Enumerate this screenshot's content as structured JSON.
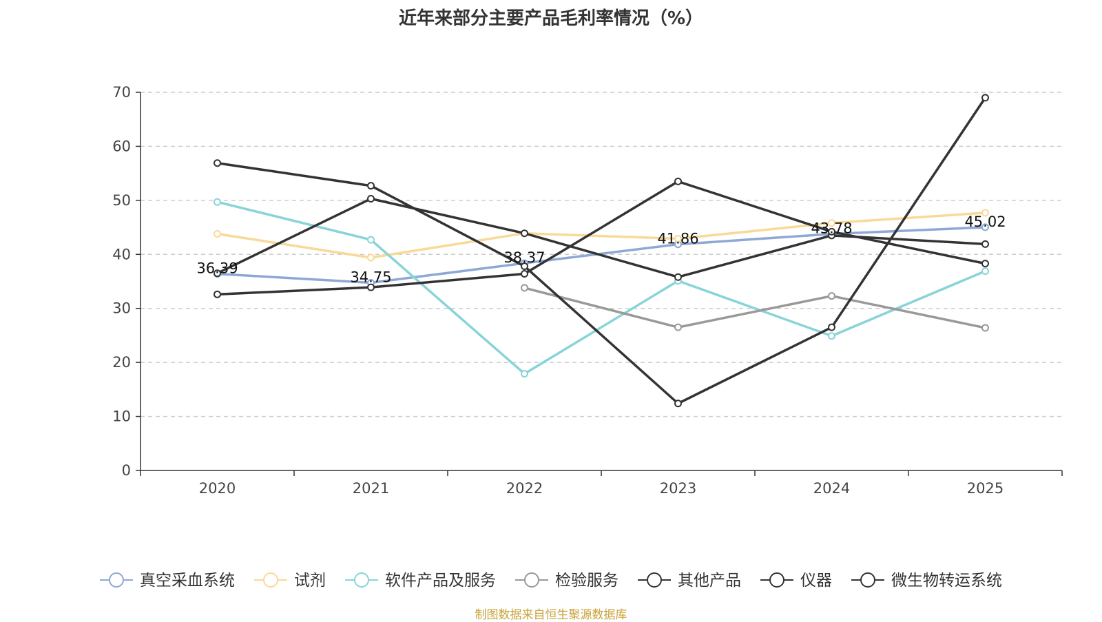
{
  "chart_data": {
    "type": "line",
    "title": "近年来部分主要产品毛利率情况（%）",
    "xlabel": "",
    "ylabel": "",
    "ylim": [
      0,
      70
    ],
    "yticks": [
      0,
      10,
      20,
      30,
      40,
      50,
      60,
      70
    ],
    "categories": [
      "2020",
      "2021",
      "2022",
      "2023",
      "2024",
      "2025"
    ],
    "grid": true,
    "legend_position": "bottom",
    "series": [
      {
        "name": "真空采血系统",
        "color": "#8ea8d6",
        "values": [
          36.39,
          34.75,
          38.37,
          41.86,
          43.78,
          45.02
        ],
        "labels": [
          "36.39",
          "34.75",
          "38.37",
          "41.86",
          "43.78",
          "45.02"
        ]
      },
      {
        "name": "试剂",
        "color": "#f9d997",
        "values": [
          43.8,
          39.4,
          43.9,
          42.9,
          45.8,
          47.7
        ]
      },
      {
        "name": "软件产品及服务",
        "color": "#88d4d8",
        "values": [
          49.7,
          42.7,
          17.9,
          35.1,
          24.9,
          36.9
        ]
      },
      {
        "name": "检验服务",
        "color": "#999999",
        "values": [
          null,
          null,
          33.8,
          26.5,
          32.3,
          26.4
        ]
      },
      {
        "name": "其他产品",
        "color": "#333333",
        "values": [
          56.9,
          52.7,
          37.8,
          12.4,
          26.5,
          69.0
        ]
      },
      {
        "name": "仪器",
        "color": "#333333",
        "values": [
          36.5,
          50.3,
          43.9,
          35.8,
          43.5,
          41.9
        ]
      },
      {
        "name": "微生物转运系统",
        "color": "#333333",
        "values": [
          32.6,
          33.9,
          36.4,
          53.5,
          44.2,
          38.3
        ]
      }
    ],
    "source_note": "制图数据来自恒生聚源数据库"
  }
}
